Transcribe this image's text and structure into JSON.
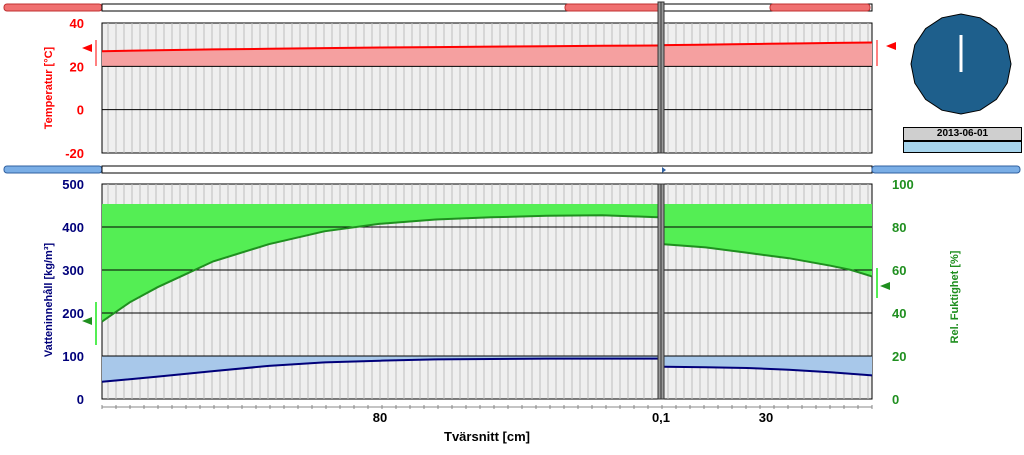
{
  "date_label": "2013-06-01",
  "colors": {
    "temp": "#ff0000",
    "temp_fill": "#f5a0a0",
    "water": "#00007a",
    "water_fill": "#a8c8ea",
    "rh": "#1f8f1f",
    "rh_fill": "#54ee54",
    "plot_bg": "#efefef",
    "clock": "#1e5f8c"
  },
  "chart_data": [
    {
      "type": "area",
      "ylabel": "Temperatur [°C]",
      "ylim": [
        -20,
        40
      ],
      "yticks": [
        "40",
        "20",
        "0",
        "-20"
      ],
      "x": [
        0,
        10,
        20,
        30,
        40,
        50,
        60,
        70,
        80,
        90,
        100
      ],
      "series": [
        {
          "left_layer": [
            27.0,
            27.4,
            27.8,
            28.1,
            28.4,
            28.7,
            28.9,
            29.1,
            29.3,
            29.5,
            29.6
          ],
          "right_layer": [
            29.8,
            30.0,
            30.2,
            30.4,
            30.6,
            30.8,
            31.0
          ]
        }
      ]
    },
    {
      "type": "line",
      "xlabel": "Tvärsnitt [cm]",
      "xtick_labels": [
        "80",
        "0,1",
        "30"
      ],
      "y_left_label": "Vatteninnehåll [kg/m³]",
      "y_left_lim": [
        0,
        500
      ],
      "y_left_ticks": [
        "500",
        "400",
        "300",
        "200",
        "100",
        "0"
      ],
      "y_right_label": "Rel. Fuktighet [%]",
      "y_right_lim": [
        0,
        100
      ],
      "y_right_ticks": [
        "100",
        "80",
        "60",
        "40",
        "20",
        "0"
      ],
      "series": [
        {
          "axis": "right",
          "left_layer_x": [
            0,
            5,
            10,
            15,
            20,
            30,
            40,
            50,
            60,
            70,
            80,
            90,
            100
          ],
          "left_layer_y": [
            36,
            45,
            52,
            58,
            64,
            72,
            78,
            81.5,
            83.5,
            84.5,
            85.2,
            85.5,
            84.5
          ],
          "right_layer_x": [
            0,
            20,
            40,
            60,
            80,
            90,
            100
          ],
          "right_layer_y": [
            72,
            70.5,
            68,
            65.5,
            62,
            60,
            57
          ]
        },
        {
          "axis": "left",
          "left_layer_x": [
            0,
            10,
            20,
            30,
            40,
            50,
            60,
            70,
            80,
            90,
            100
          ],
          "left_layer_y": [
            40,
            52,
            65,
            77,
            85,
            89,
            92,
            93,
            94,
            94,
            94
          ],
          "right_layer_x": [
            0,
            20,
            40,
            60,
            80,
            100
          ],
          "right_layer_y": [
            75,
            74,
            72,
            68,
            62,
            55
          ]
        }
      ]
    }
  ]
}
